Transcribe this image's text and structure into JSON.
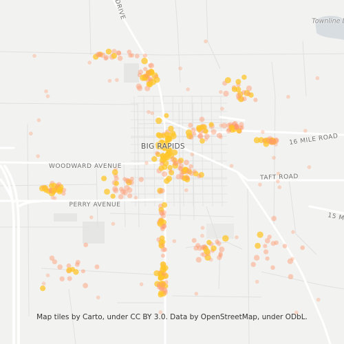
{
  "map": {
    "colors": {
      "background": "#f2f2f0",
      "road": "#ffffff",
      "street": "#e2e2e2",
      "water": "#d8dde2",
      "block": "#e6e6e4",
      "dot_core": "#ffc629",
      "dot_edge": "#ff9a6e"
    },
    "labels": {
      "city": "BIG RAPIDS",
      "woodward": "WOODWARD AVENUE",
      "perry": "PERRY AVENUE",
      "sixteen_mile": "16 MILE ROAD",
      "fifteen_mile": "15 MI",
      "taft": "TAFT ROAD",
      "drive": "DRIVE",
      "townline": "Townline L"
    },
    "attribution": "Map tiles by Carto, under CC BY 3.0. Data by OpenStreetMap, under ODbL."
  }
}
